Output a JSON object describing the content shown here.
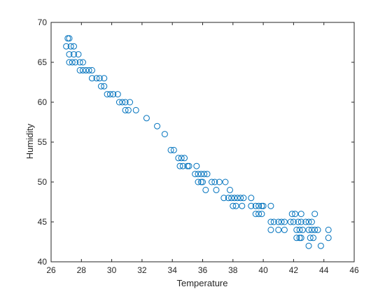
{
  "chart_data": {
    "type": "scatter",
    "title": "",
    "xlabel": "Temperature",
    "ylabel": "Humidity",
    "xlim": [
      26,
      46
    ],
    "ylim": [
      40,
      70
    ],
    "xticks": [
      26,
      28,
      30,
      32,
      34,
      36,
      38,
      40,
      42,
      44,
      46
    ],
    "yticks": [
      40,
      45,
      50,
      55,
      60,
      65,
      70
    ],
    "marker": "open-circle",
    "color": "#0072BD",
    "grid": false,
    "series": [
      {
        "points": [
          [
            27.1,
            68
          ],
          [
            27.2,
            68
          ],
          [
            27.0,
            67
          ],
          [
            27.3,
            67
          ],
          [
            27.5,
            67
          ],
          [
            27.2,
            66
          ],
          [
            27.5,
            66
          ],
          [
            27.8,
            66
          ],
          [
            27.2,
            65
          ],
          [
            27.4,
            65
          ],
          [
            27.6,
            65
          ],
          [
            27.9,
            65
          ],
          [
            28.1,
            65
          ],
          [
            27.9,
            64
          ],
          [
            28.1,
            64
          ],
          [
            28.3,
            64
          ],
          [
            28.5,
            64
          ],
          [
            28.7,
            64
          ],
          [
            28.7,
            63
          ],
          [
            29.0,
            63
          ],
          [
            29.2,
            63
          ],
          [
            29.5,
            63
          ],
          [
            29.3,
            62
          ],
          [
            29.5,
            62
          ],
          [
            29.7,
            61
          ],
          [
            29.9,
            61
          ],
          [
            30.1,
            61
          ],
          [
            30.4,
            61
          ],
          [
            30.5,
            60
          ],
          [
            30.7,
            60
          ],
          [
            30.9,
            60
          ],
          [
            31.2,
            60
          ],
          [
            30.9,
            59
          ],
          [
            31.1,
            59
          ],
          [
            31.6,
            59
          ],
          [
            32.3,
            58
          ],
          [
            33.0,
            57
          ],
          [
            33.5,
            56
          ],
          [
            33.9,
            54
          ],
          [
            34.1,
            54
          ],
          [
            34.4,
            53
          ],
          [
            34.6,
            53
          ],
          [
            34.8,
            53
          ],
          [
            34.5,
            52
          ],
          [
            34.7,
            52
          ],
          [
            35.0,
            52
          ],
          [
            35.1,
            52
          ],
          [
            35.6,
            52
          ],
          [
            35.5,
            51
          ],
          [
            35.7,
            51
          ],
          [
            35.9,
            51
          ],
          [
            36.1,
            51
          ],
          [
            36.3,
            51
          ],
          [
            35.7,
            50
          ],
          [
            35.9,
            50
          ],
          [
            36.0,
            50
          ],
          [
            36.6,
            50
          ],
          [
            36.8,
            50
          ],
          [
            37.1,
            50
          ],
          [
            37.5,
            50
          ],
          [
            36.2,
            49
          ],
          [
            36.9,
            49
          ],
          [
            37.8,
            49
          ],
          [
            37.4,
            48
          ],
          [
            37.7,
            48
          ],
          [
            37.9,
            48
          ],
          [
            38.1,
            48
          ],
          [
            38.3,
            48
          ],
          [
            38.5,
            48
          ],
          [
            38.7,
            48
          ],
          [
            39.2,
            48
          ],
          [
            38.0,
            47
          ],
          [
            38.2,
            47
          ],
          [
            38.6,
            47
          ],
          [
            39.2,
            47
          ],
          [
            39.5,
            47
          ],
          [
            39.7,
            47
          ],
          [
            39.9,
            47
          ],
          [
            40.0,
            47
          ],
          [
            40.5,
            47
          ],
          [
            39.5,
            46
          ],
          [
            39.7,
            46
          ],
          [
            39.9,
            46
          ],
          [
            40.5,
            45
          ],
          [
            40.7,
            45
          ],
          [
            41.0,
            45
          ],
          [
            41.2,
            45
          ],
          [
            41.4,
            45
          ],
          [
            41.8,
            45
          ],
          [
            42.0,
            45
          ],
          [
            42.3,
            45
          ],
          [
            42.5,
            45
          ],
          [
            42.8,
            45
          ],
          [
            43.0,
            45
          ],
          [
            43.2,
            45
          ],
          [
            41.9,
            46
          ],
          [
            42.1,
            46
          ],
          [
            42.5,
            46
          ],
          [
            43.4,
            46
          ],
          [
            40.5,
            44
          ],
          [
            41.0,
            44
          ],
          [
            41.4,
            44
          ],
          [
            42.2,
            44
          ],
          [
            42.4,
            44
          ],
          [
            42.6,
            44
          ],
          [
            43.0,
            44
          ],
          [
            43.2,
            44
          ],
          [
            43.4,
            44
          ],
          [
            43.6,
            44
          ],
          [
            44.3,
            44
          ],
          [
            42.2,
            43
          ],
          [
            42.4,
            43
          ],
          [
            42.5,
            43
          ],
          [
            43.1,
            43
          ],
          [
            43.3,
            43
          ],
          [
            44.3,
            43
          ],
          [
            43.0,
            42
          ],
          [
            43.8,
            42
          ]
        ]
      }
    ]
  }
}
